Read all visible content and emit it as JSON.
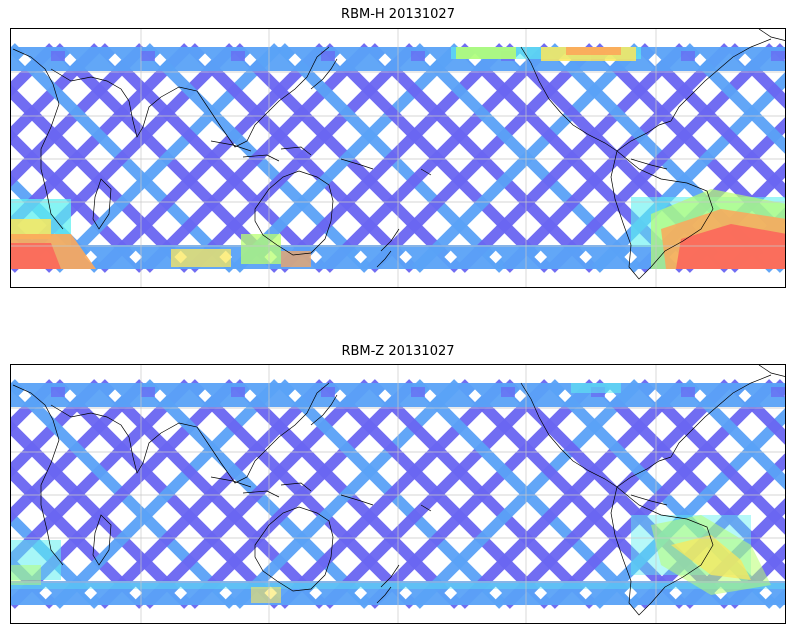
{
  "panels": [
    {
      "id": "h",
      "title": "RBM-H 20131027"
    },
    {
      "id": "z",
      "title": "RBM-Z 20131027"
    }
  ],
  "map_colors": {
    "swath_low": "#6a66f2",
    "swath_mid": "#5aa2f7",
    "swath_cyan": "#5ef0f0",
    "swath_green": "#b8ff70",
    "swath_yellow": "#fbe85c",
    "swath_orange": "#fca75a",
    "swath_high": "#fb6a5c",
    "coastline": "#000000",
    "gridline": "#c8c8c8"
  }
}
